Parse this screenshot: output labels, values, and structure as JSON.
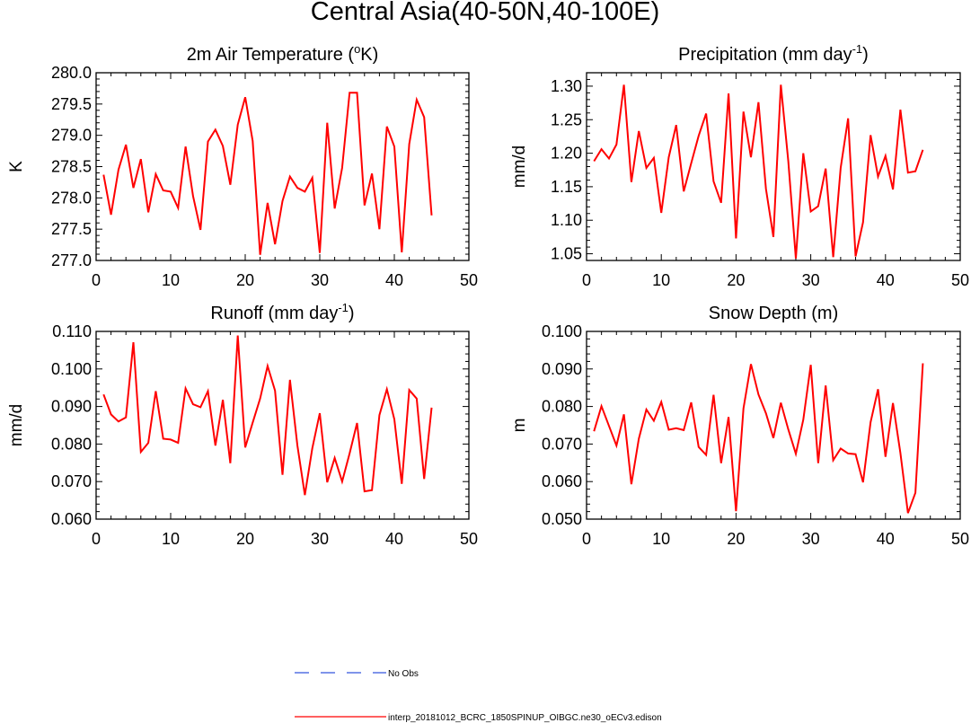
{
  "figure": {
    "title": "Central Asia(40-50N,40-100E)"
  },
  "chart_data": [
    {
      "type": "line",
      "title": "2m Air Temperature (",
      "title_sup": "o",
      "title_tail": "K)",
      "ylabel": "K",
      "xlim": [
        0,
        50
      ],
      "ylim": [
        277.0,
        280.0
      ],
      "xticks": [
        0,
        10,
        20,
        30,
        40,
        50
      ],
      "yticks": [
        277.0,
        277.5,
        278.0,
        278.5,
        279.0,
        279.5,
        280.0
      ],
      "ytick_labels": [
        "277.0",
        "277.5",
        "278.0",
        "278.5",
        "279.0",
        "279.5",
        "280.0"
      ],
      "series": [
        {
          "color": "#ff0000",
          "x": [
            1,
            2,
            3,
            4,
            5,
            6,
            7,
            8,
            9,
            10,
            11,
            12,
            13,
            14,
            15,
            16,
            17,
            18,
            19,
            20,
            21,
            22,
            23,
            24,
            25,
            26,
            27,
            28,
            29,
            30,
            31,
            32,
            33,
            34,
            35,
            36,
            37,
            38,
            39,
            40,
            41,
            42,
            43,
            44,
            45
          ],
          "values": [
            278.37,
            277.73,
            278.45,
            278.85,
            278.16,
            278.62,
            277.77,
            278.38,
            278.12,
            278.1,
            277.84,
            278.82,
            278.03,
            277.49,
            278.9,
            279.09,
            278.83,
            278.21,
            279.17,
            279.61,
            278.91,
            277.09,
            277.92,
            277.26,
            277.95,
            278.34,
            278.16,
            278.1,
            278.32,
            277.12,
            279.2,
            277.83,
            278.48,
            279.68,
            279.68,
            277.88,
            278.39,
            277.5,
            279.14,
            278.82,
            277.13,
            278.86,
            279.57,
            279.29,
            277.72
          ]
        }
      ]
    },
    {
      "type": "line",
      "title": "Precipitation (mm day",
      "title_sup": "-1",
      "title_tail": ")",
      "ylabel": "mm/d",
      "xlim": [
        0,
        50
      ],
      "ylim": [
        1.04,
        1.32
      ],
      "xticks": [
        0,
        10,
        20,
        30,
        40,
        50
      ],
      "yticks": [
        1.05,
        1.1,
        1.15,
        1.2,
        1.25,
        1.3
      ],
      "ytick_labels": [
        "1.05",
        "1.10",
        "1.15",
        "1.20",
        "1.25",
        "1.30"
      ],
      "series": [
        {
          "color": "#ff0000",
          "x": [
            1,
            2,
            3,
            4,
            5,
            6,
            7,
            8,
            9,
            10,
            11,
            12,
            13,
            14,
            15,
            16,
            17,
            18,
            19,
            20,
            21,
            22,
            23,
            24,
            25,
            26,
            27,
            28,
            29,
            30,
            31,
            32,
            33,
            34,
            35,
            36,
            37,
            38,
            39,
            40,
            41,
            42,
            43,
            44,
            45
          ],
          "values": [
            1.188,
            1.206,
            1.192,
            1.213,
            1.302,
            1.157,
            1.233,
            1.178,
            1.193,
            1.111,
            1.194,
            1.242,
            1.143,
            1.185,
            1.226,
            1.259,
            1.158,
            1.126,
            1.289,
            1.073,
            1.262,
            1.194,
            1.276,
            1.147,
            1.075,
            1.302,
            1.188,
            1.043,
            1.2,
            1.113,
            1.121,
            1.177,
            1.045,
            1.178,
            1.252,
            1.046,
            1.097,
            1.227,
            1.165,
            1.196,
            1.146,
            1.265,
            1.171,
            1.173,
            1.205
          ]
        }
      ]
    },
    {
      "type": "line",
      "title": "Runoff (mm day",
      "title_sup": "-1",
      "title_tail": ")",
      "ylabel": "mm/d",
      "xlim": [
        0,
        50
      ],
      "ylim": [
        0.06,
        0.11
      ],
      "xticks": [
        0,
        10,
        20,
        30,
        40,
        50
      ],
      "yticks": [
        0.06,
        0.07,
        0.08,
        0.09,
        0.1,
        0.11
      ],
      "ytick_labels": [
        "0.060",
        "0.070",
        "0.080",
        "0.090",
        "0.100",
        "0.110"
      ],
      "series": [
        {
          "color": "#ff0000",
          "x": [
            1,
            2,
            3,
            4,
            5,
            6,
            7,
            8,
            9,
            10,
            11,
            12,
            13,
            14,
            15,
            16,
            17,
            18,
            19,
            20,
            21,
            22,
            23,
            24,
            25,
            26,
            27,
            28,
            29,
            30,
            31,
            32,
            33,
            34,
            35,
            36,
            37,
            38,
            39,
            40,
            41,
            42,
            43,
            44,
            45
          ],
          "values": [
            0.0932,
            0.0879,
            0.086,
            0.0871,
            0.1071,
            0.0779,
            0.0803,
            0.0941,
            0.0814,
            0.0812,
            0.0803,
            0.0948,
            0.0906,
            0.0898,
            0.0941,
            0.0796,
            0.0918,
            0.0749,
            0.1089,
            0.0791,
            0.0857,
            0.0921,
            0.1008,
            0.0942,
            0.0718,
            0.0971,
            0.0796,
            0.0664,
            0.0789,
            0.0882,
            0.0698,
            0.0763,
            0.07,
            0.0775,
            0.0856,
            0.0674,
            0.0677,
            0.0877,
            0.0946,
            0.0866,
            0.0694,
            0.0944,
            0.0921,
            0.0707,
            0.0897
          ]
        }
      ]
    },
    {
      "type": "line",
      "title": "Snow Depth (m)",
      "title_sup": "",
      "title_tail": "",
      "ylabel": "m",
      "xlim": [
        0,
        50
      ],
      "ylim": [
        0.05,
        0.1
      ],
      "xticks": [
        0,
        10,
        20,
        30,
        40,
        50
      ],
      "yticks": [
        0.05,
        0.06,
        0.07,
        0.08,
        0.09,
        0.1
      ],
      "ytick_labels": [
        "0.050",
        "0.060",
        "0.070",
        "0.080",
        "0.090",
        "0.100"
      ],
      "series": [
        {
          "color": "#ff0000",
          "x": [
            1,
            2,
            3,
            4,
            5,
            6,
            7,
            8,
            9,
            10,
            11,
            12,
            13,
            14,
            15,
            16,
            17,
            18,
            19,
            20,
            21,
            22,
            23,
            24,
            25,
            26,
            27,
            28,
            29,
            30,
            31,
            32,
            33,
            34,
            35,
            36,
            37,
            38,
            39,
            40,
            41,
            42,
            43,
            44,
            45
          ],
          "values": [
            0.0734,
            0.0801,
            0.0748,
            0.0696,
            0.0779,
            0.0593,
            0.0714,
            0.0792,
            0.0762,
            0.0812,
            0.0738,
            0.0742,
            0.0737,
            0.0811,
            0.0692,
            0.0671,
            0.0831,
            0.0649,
            0.0772,
            0.0521,
            0.0795,
            0.0913,
            0.0832,
            0.0782,
            0.0716,
            0.081,
            0.0739,
            0.0674,
            0.0765,
            0.0911,
            0.0649,
            0.0856,
            0.0657,
            0.0688,
            0.0675,
            0.0673,
            0.0598,
            0.0758,
            0.0846,
            0.0666,
            0.0809,
            0.0676,
            0.0516,
            0.057,
            0.0915
          ]
        }
      ]
    }
  ],
  "legend": {
    "items": [
      {
        "label": "No Obs",
        "color": "#3355dd",
        "style": "dashed"
      },
      {
        "label": "interp_20181012_BCRC_1850SPINUP_OIBGC.ne30_oECv3.edison",
        "color": "#ff0000",
        "style": "solid"
      }
    ]
  }
}
